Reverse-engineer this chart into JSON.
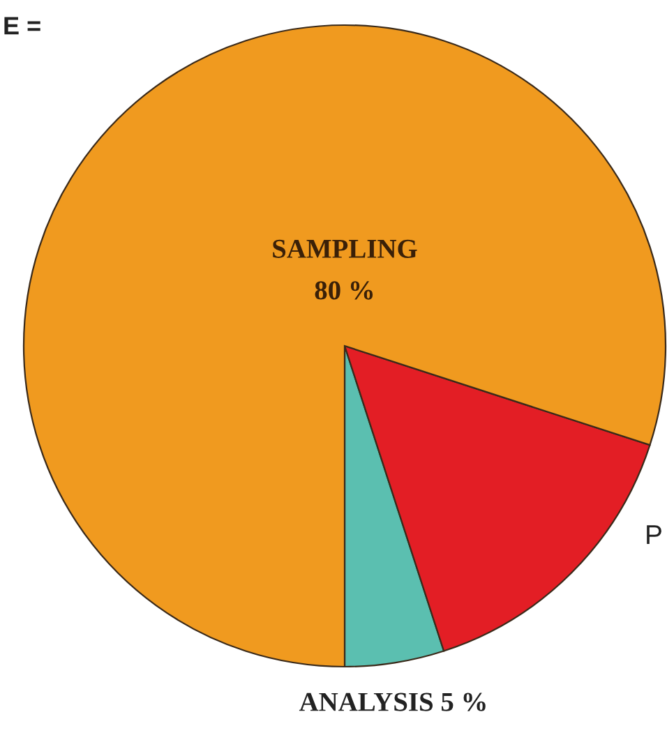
{
  "chart_data": {
    "type": "pie",
    "categories": [
      "ANALYSIS",
      "P",
      "SAMPLING"
    ],
    "values": [
      5,
      15,
      80
    ],
    "value_labels": [
      "5 %",
      null,
      "80 %"
    ],
    "colors": [
      "#5bbfb0",
      "#e31e25",
      "#f09a1f"
    ],
    "annotations": [
      "E ="
    ]
  }
}
